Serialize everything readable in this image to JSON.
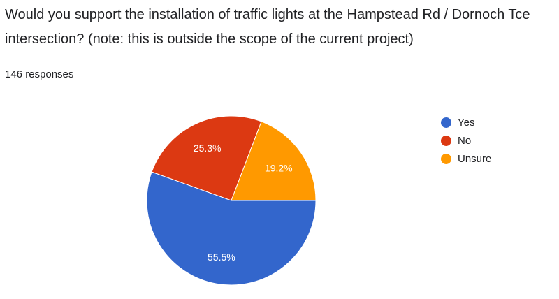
{
  "question": "Would you support the installation of traffic lights at the Hampstead Rd / Dornoch Tce intersection? (note: this is outside the scope of the current project)",
  "responses_label": "146 responses",
  "chart_data": {
    "type": "pie",
    "categories": [
      "Yes",
      "No",
      "Unsure"
    ],
    "values": [
      55.5,
      25.3,
      19.2
    ],
    "labels": [
      "55.5%",
      "25.3%",
      "19.2%"
    ],
    "colors": [
      "#3366cc",
      "#dc3912",
      "#ff9900"
    ],
    "legend": "right"
  }
}
